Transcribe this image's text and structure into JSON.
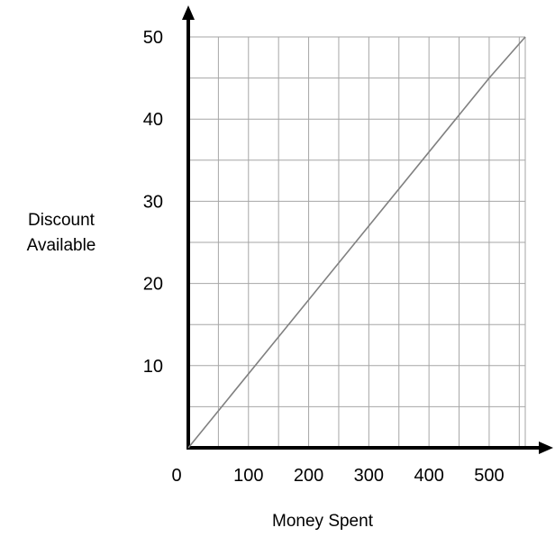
{
  "chart_data": {
    "type": "line",
    "xlabel": "Money Spent",
    "ylabel_line1": "Discount",
    "ylabel_line2": "Available",
    "xlim": [
      0,
      560
    ],
    "ylim": [
      0,
      50
    ],
    "grid": true,
    "x_ticks": [
      0,
      100,
      200,
      300,
      400,
      500
    ],
    "x_tick_labels": [
      "0",
      "100",
      "200",
      "300",
      "400",
      "500"
    ],
    "y_ticks": [
      10,
      20,
      30,
      40,
      50
    ],
    "y_tick_labels": [
      "10",
      "20",
      "30",
      "40",
      "50"
    ],
    "x_grid_step": 50,
    "y_grid_step": 5,
    "series": [
      {
        "x": [
          0,
          500,
          560
        ],
        "y": [
          0,
          45,
          50
        ]
      }
    ],
    "colors": {
      "line": "#808080",
      "grid": "#a6a6a6",
      "axis": "#000000"
    }
  }
}
